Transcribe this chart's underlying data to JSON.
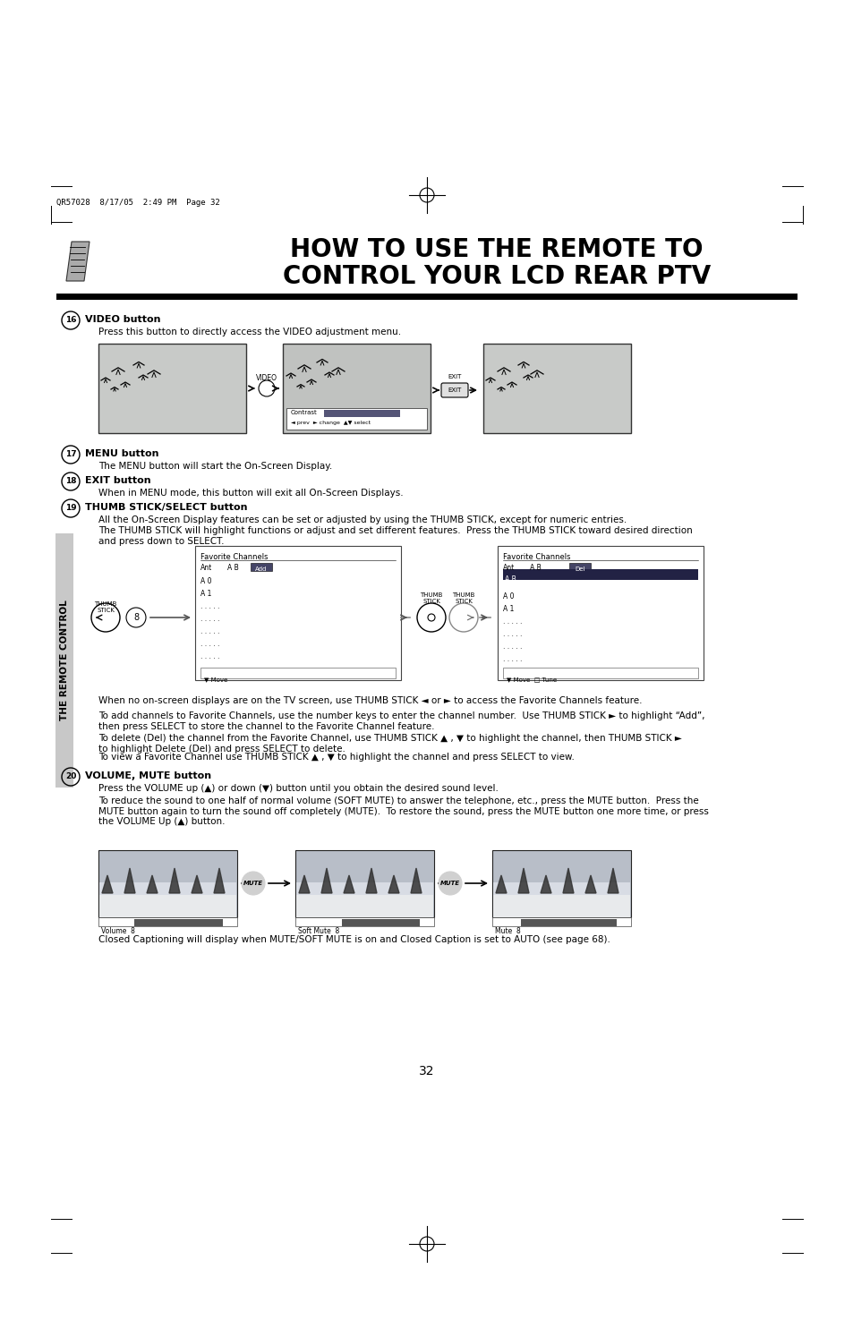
{
  "title_line1": "HOW TO USE THE REMOTE TO",
  "title_line2": "CONTROL YOUR LCD REAR PTV",
  "header_meta": "QR57028  8/17/05  2:49 PM  Page 32",
  "section16_title": "VIDEO button",
  "section16_body": "Press this button to directly access the VIDEO adjustment menu.",
  "section17_title": "MENU button",
  "section17_body": "The MENU button will start the On-Screen Display.",
  "section18_title": "EXIT button",
  "section18_body": "When in MENU mode, this button will exit all On-Screen Displays.",
  "section19_title": "THUMB STICK/SELECT button",
  "section19_body1": "All the On-Screen Display features can be set or adjusted by using the THUMB STICK, except for numeric entries.",
  "section19_body2": "The THUMB STICK will highlight functions or adjust and set different features.  Press the THUMB STICK toward desired direction\nand press down to SELECT.",
  "section19_note1": "When no on-screen displays are on the TV screen, use THUMB STICK ◄ or ► to access the Favorite Channels feature.",
  "section19_note2": "To add channels to Favorite Channels, use the number keys to enter the channel number.  Use THUMB STICK ► to highlight “Add”,\nthen press SELECT to store the channel to the Favorite Channel feature.",
  "section19_note3": "To delete (Del) the channel from the Favorite Channel, use THUMB STICK ▲ , ▼ to highlight the channel, then THUMB STICK ►\nto highlight Delete (Del) and press SELECT to delete.",
  "section19_note4": "To view a Favorite Channel use THUMB STICK ▲ , ▼ to highlight the channel and press SELECT to view.",
  "section20_title": "VOLUME, MUTE button",
  "section20_body1": "Press the VOLUME up (▲) or down (▼) button until you obtain the desired sound level.",
  "section20_body2": "To reduce the sound to one half of normal volume (SOFT MUTE) to answer the telephone, etc., press the MUTE button.  Press the\nMUTE button again to turn the sound off completely (MUTE).  To restore the sound, press the MUTE button one more time, or press\nthe VOLUME Up (▲) button.",
  "section20_note": "Closed Captioning will display when MUTE/SOFT MUTE is on and Closed Caption is set to AUTO (see page 68).",
  "page_number": "32",
  "sidebar_text": "THE REMOTE CONTROL",
  "bg_color": "#ffffff",
  "text_color": "#000000",
  "title_text_color": "#000000",
  "sidebar_bg": "#c8c8c8"
}
